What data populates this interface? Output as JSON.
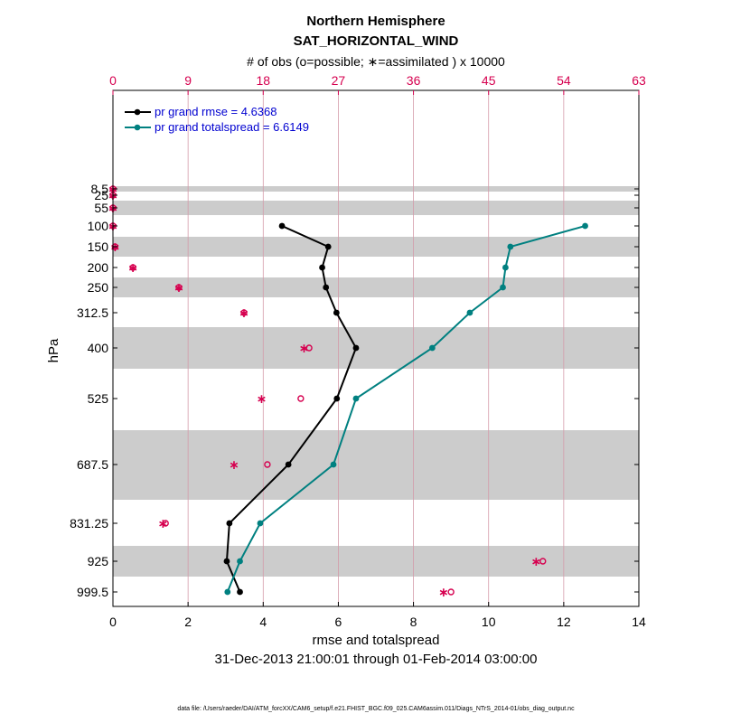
{
  "colors": {
    "rmse": "#000000",
    "totalspread": "#008080",
    "obs": "#d6004f",
    "band": "#cccccc",
    "legend_text": "#0000d0"
  },
  "chart_data": {
    "type": "line",
    "title": "Northern Hemisphere",
    "subtitle": "SAT_HORIZONTAL_WIND",
    "top_axis_label": "# of obs (o=possible; ∗=assimilated ) x 10000",
    "xlabel": "rmse and totalspread",
    "date_range": "31-Dec-2013 21:00:01 through 01-Feb-2014 03:00:00",
    "ylabel": "hPa",
    "xlim": [
      0,
      14
    ],
    "xticks": [
      "0",
      "2",
      "4",
      "6",
      "8",
      "10",
      "12",
      "14"
    ],
    "top_xlim": [
      0,
      63
    ],
    "top_xticks": [
      "0",
      "9",
      "18",
      "27",
      "36",
      "45",
      "54",
      "63"
    ],
    "levels": [
      8.5,
      25,
      55,
      100,
      150,
      200,
      250,
      312.5,
      400,
      525,
      687.5,
      831.25,
      925,
      999.5
    ],
    "level_labels": [
      "8.5",
      "25",
      "55",
      "100",
      "150",
      "200",
      "250",
      "312.5",
      "400",
      "525",
      "687.5",
      "831.25",
      "925",
      "999.5"
    ],
    "series": [
      {
        "name": "pr grand rmse = 4.6368",
        "levels": [
          100,
          150,
          200,
          250,
          312.5,
          400,
          525,
          687.5,
          831.25,
          925,
          999.5
        ],
        "values": [
          4.5,
          5.73,
          5.57,
          5.67,
          5.95,
          6.47,
          5.96,
          4.67,
          3.1,
          3.03,
          3.38
        ]
      },
      {
        "name": "pr grand totalspread = 6.6149",
        "levels": [
          100,
          150,
          200,
          250,
          312.5,
          400,
          525,
          687.5,
          831.25,
          925,
          999.5
        ],
        "values": [
          12.57,
          10.58,
          10.45,
          10.38,
          9.5,
          8.5,
          6.47,
          5.87,
          3.92,
          3.38,
          3.05
        ]
      }
    ],
    "obs_possible": [
      0.0,
      0.0,
      0.0,
      0.0,
      0.25,
      2.4,
      7.9,
      15.7,
      23.5,
      22.5,
      18.5,
      6.3,
      51.5,
      40.5
    ],
    "obs_assimilated": [
      0.0,
      0.0,
      0.0,
      0.0,
      0.25,
      2.4,
      7.9,
      15.7,
      22.9,
      17.8,
      14.5,
      6.0,
      50.7,
      39.6
    ]
  },
  "footer": "data file: /Users/raeder/DAI/ATM_forcXX/CAM6_setup/f.e21.FHIST_BGC.f09_025.CAM6assim.011/Diags_NTrS_2014-01/obs_diag_output.nc"
}
